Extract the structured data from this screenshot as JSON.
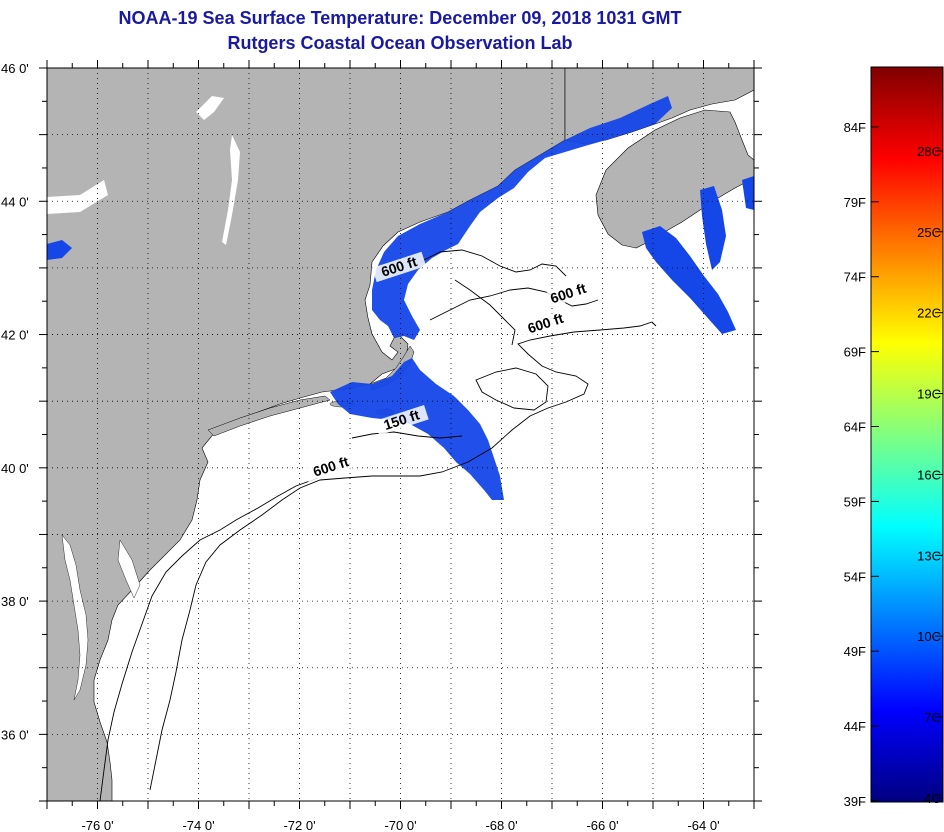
{
  "title_line1": "NOAA-19 Sea Surface Temperature:  December 09, 2018 1031 GMT",
  "title_line2": "Rutgers Coastal Ocean Observation Lab",
  "map": {
    "lon_range": [
      -77,
      -63
    ],
    "lat_range": [
      35,
      46
    ],
    "lat_labels": [
      {
        "value": 46,
        "text": "46 0'"
      },
      {
        "value": 44,
        "text": "44 0'"
      },
      {
        "value": 42,
        "text": "42 0'"
      },
      {
        "value": 40,
        "text": "40 0'"
      },
      {
        "value": 38,
        "text": "38 0'"
      },
      {
        "value": 36,
        "text": "36 0'"
      }
    ],
    "lon_labels": [
      {
        "value": -76,
        "text": "-76 0'"
      },
      {
        "value": -74,
        "text": "-74 0'"
      },
      {
        "value": -72,
        "text": "-72 0'"
      },
      {
        "value": -70,
        "text": "-70 0'"
      },
      {
        "value": -68,
        "text": "-68 0'"
      },
      {
        "value": -66,
        "text": "-66 0'"
      },
      {
        "value": -64,
        "text": "-64 0'"
      }
    ],
    "contour_labels": [
      {
        "text": "600 ft",
        "lon": -70.0,
        "lat": 42.95
      },
      {
        "text": "600 ft",
        "lon": -66.65,
        "lat": 42.55
      },
      {
        "text": "600 ft",
        "lon": -67.1,
        "lat": 42.1
      },
      {
        "text": "150 ft",
        "lon": -69.95,
        "lat": 40.65
      },
      {
        "text": "600 ft",
        "lon": -71.35,
        "lat": 39.95
      }
    ],
    "land_color": "#b4b4b4",
    "ocean_color": "#ffffff",
    "sst_color": "#1446e8"
  },
  "colorbar": {
    "colors": [
      "#000080",
      "#0000ff",
      "#0080ff",
      "#00ffff",
      "#80ff80",
      "#ffff00",
      "#ff8000",
      "#ff0000",
      "#800000"
    ],
    "fahrenheit": [
      {
        "value": 84,
        "text": "84F"
      },
      {
        "value": 79,
        "text": "79F"
      },
      {
        "value": 74,
        "text": "74F"
      },
      {
        "value": 69,
        "text": "69F"
      },
      {
        "value": 64,
        "text": "64F"
      },
      {
        "value": 59,
        "text": "59F"
      },
      {
        "value": 54,
        "text": "54F"
      },
      {
        "value": 49,
        "text": "49F"
      },
      {
        "value": 44,
        "text": "44F"
      },
      {
        "value": 39,
        "text": "39F"
      }
    ],
    "celsius": [
      {
        "value": 28,
        "text": "28C"
      },
      {
        "value": 25,
        "text": "25C"
      },
      {
        "value": 22,
        "text": "22C"
      },
      {
        "value": 19,
        "text": "19C"
      },
      {
        "value": 16,
        "text": "16C"
      },
      {
        "value": 13,
        "text": "13C"
      },
      {
        "value": 10,
        "text": "10C"
      },
      {
        "value": 7,
        "text": "7C"
      },
      {
        "value": 4,
        "text": "4C"
      }
    ]
  }
}
